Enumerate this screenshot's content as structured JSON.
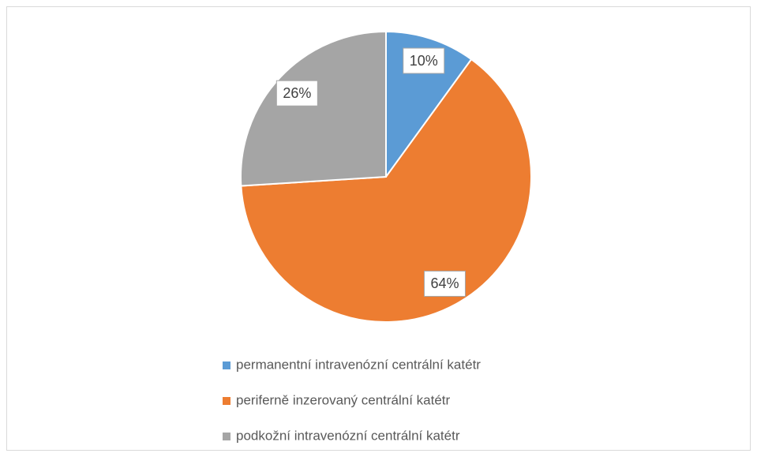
{
  "chart_data": {
    "type": "pie",
    "categories": [
      "permanentní intravenózní centrální katétr",
      "periferně inzerovaný centrální katétr",
      "podkožní intravenózní centrální katétr"
    ],
    "values": [
      10,
      64,
      26
    ],
    "value_labels": [
      "10%",
      "64%",
      "26%"
    ],
    "colors": [
      "#5b9bd5",
      "#ed7d31",
      "#a5a5a5"
    ]
  }
}
